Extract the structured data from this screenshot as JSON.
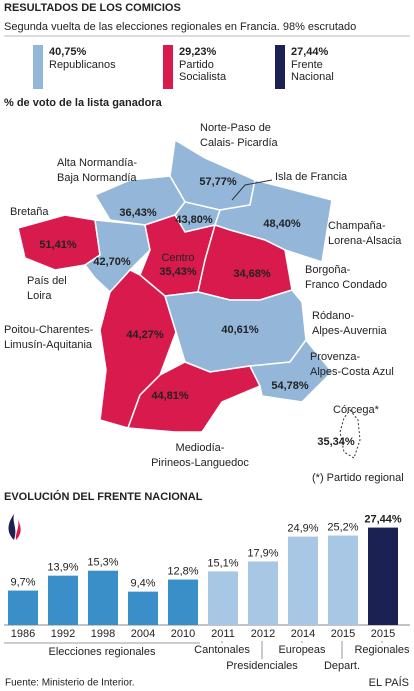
{
  "header": {
    "title": "RESULTADOS DE LOS COMICIOS",
    "subtitle": "Segunda vuelta de las elecciones regionales en Francia. 98% escrutado"
  },
  "legend": [
    {
      "value": "40,75%",
      "label": [
        "Republicanos"
      ],
      "color": "#93b6d9"
    },
    {
      "value": "29,23%",
      "label": [
        "Partido",
        "Socialista"
      ],
      "color": "#d81b4c"
    },
    {
      "value": "27,44%",
      "label": [
        "Frente",
        "Nacional"
      ],
      "color": "#1b2152"
    }
  ],
  "map": {
    "title": "% de voto de la lista ganadora",
    "regions": [
      {
        "name": [
          "Norte-Paso de",
          "Calais- Picardía"
        ],
        "value": "57,77%",
        "color": "#93b6d9"
      },
      {
        "name": [
          "Alta Normandía-",
          "Baja Normandía"
        ],
        "value": "36,43%",
        "color": "#93b6d9"
      },
      {
        "name": [
          "Isla de Francia"
        ],
        "value": "43,80%",
        "color": "#93b6d9"
      },
      {
        "name": [
          "Champaña-",
          "Lorena-Alsacia"
        ],
        "value": "48,40%",
        "color": "#93b6d9"
      },
      {
        "name": [
          "Bretaña"
        ],
        "value": "51,41%",
        "color": "#d81b4c"
      },
      {
        "name": [
          "País del",
          "Loira"
        ],
        "value": "42,70%",
        "color": "#93b6d9"
      },
      {
        "name": [
          "Centro"
        ],
        "value": "35,43%",
        "color": "#d81b4c"
      },
      {
        "name": [
          "Borgoña-",
          "Franco Condado"
        ],
        "value": "34,68%",
        "color": "#d81b4c"
      },
      {
        "name": [
          "Poitou-Charentes-",
          "Limusín-Aquitania"
        ],
        "value": "44,27%",
        "color": "#d81b4c"
      },
      {
        "name": [
          "Ródano-",
          "Alpes-Auvernia"
        ],
        "value": "40,61%",
        "color": "#93b6d9"
      },
      {
        "name": [
          "Mediodía-",
          "Pirineos-Languedoc"
        ],
        "value": "44,81%",
        "color": "#d81b4c"
      },
      {
        "name": [
          "Provenza-",
          "Alpes-Costa Azul"
        ],
        "value": "54,78%",
        "color": "#93b6d9"
      },
      {
        "name": [
          "Córcega*"
        ],
        "value": "35,34%",
        "color": "#ffffff"
      }
    ],
    "note": "(*) Partido regional"
  },
  "chart_data": {
    "type": "bar",
    "title": "EVOLUCIÓN DEL FRENTE NACIONAL",
    "categories": [
      "1986",
      "1992",
      "1998",
      "2004",
      "2010",
      "2011",
      "2012",
      "2014",
      "2015",
      "2015"
    ],
    "values": [
      9.7,
      13.9,
      15.3,
      9.4,
      12.8,
      15.1,
      17.9,
      24.9,
      25.2,
      27.44
    ],
    "value_labels": [
      "9,7%",
      "13,9%",
      "15,3%",
      "9,4%",
      "12,8%",
      "15,1%",
      "17,9%",
      "24,9%",
      "25,2%",
      "27,44%"
    ],
    "colors": [
      "#3b8fc9",
      "#3b8fc9",
      "#3b8fc9",
      "#3b8fc9",
      "#3b8fc9",
      "#a8c7e4",
      "#a8c7e4",
      "#a8c7e4",
      "#a8c7e4",
      "#1b2152"
    ],
    "group_labels": [
      "Elecciones regionales",
      "Cantonales",
      "Presidenciales",
      "Europeas",
      "Depart.",
      "Regionales"
    ]
  },
  "footer": {
    "source": "Fuente: Ministerio de Interior.",
    "brand": "EL PAÍS"
  }
}
